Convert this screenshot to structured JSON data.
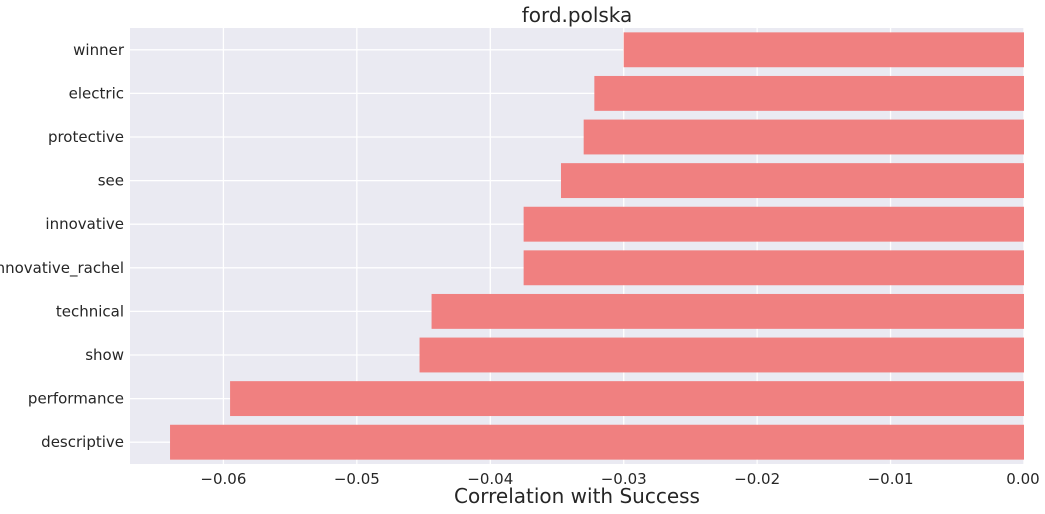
{
  "chart_data": {
    "type": "bar",
    "orientation": "horizontal",
    "title": "ford.polska",
    "xlabel": "Correlation with Success",
    "ylabel": "",
    "categories": [
      "winner",
      "electric",
      "protective",
      "see",
      "innovative",
      "innovative_rachel",
      "technical",
      "show",
      "performance",
      "descriptive"
    ],
    "values": [
      -0.03,
      -0.0322,
      -0.033,
      -0.0347,
      -0.0375,
      -0.0375,
      -0.0444,
      -0.0453,
      -0.0595,
      -0.064
    ],
    "xlim": [
      -0.067,
      0.0
    ],
    "xticks": [
      -0.06,
      -0.05,
      -0.04,
      -0.03,
      -0.02,
      -0.01,
      0.0
    ],
    "xtick_labels": [
      "−0.06",
      "−0.05",
      "−0.04",
      "−0.03",
      "−0.02",
      "−0.01",
      "0.00"
    ],
    "grid": true,
    "legend": "none",
    "colors": {
      "bar": "#f08080",
      "background": "#eaeaf2",
      "grid": "#ffffff",
      "text": "#262626"
    }
  }
}
